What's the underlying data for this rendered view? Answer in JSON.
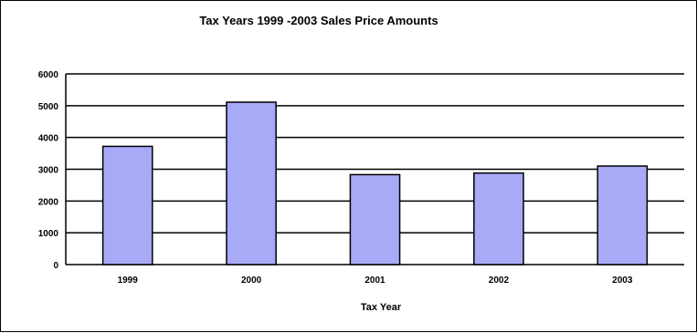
{
  "chart_data": {
    "type": "bar",
    "title": "Tax Years 1999 -2003 Sales Price Amounts",
    "xlabel": "Tax Year",
    "ylabel": "",
    "categories": [
      "1999",
      "2000",
      "2001",
      "2002",
      "2003"
    ],
    "values": [
      3720,
      5110,
      2830,
      2880,
      3100
    ],
    "ylim": [
      0,
      6000
    ],
    "yticks": [
      "0",
      "1000",
      "2000",
      "3000",
      "4000",
      "5000",
      "6000"
    ],
    "grid": true,
    "legend": "none",
    "colors": {
      "bar_fill": "#a8aaf8",
      "bar_stroke": "#000000",
      "grid": "#000000",
      "background": "#ffffff"
    }
  }
}
